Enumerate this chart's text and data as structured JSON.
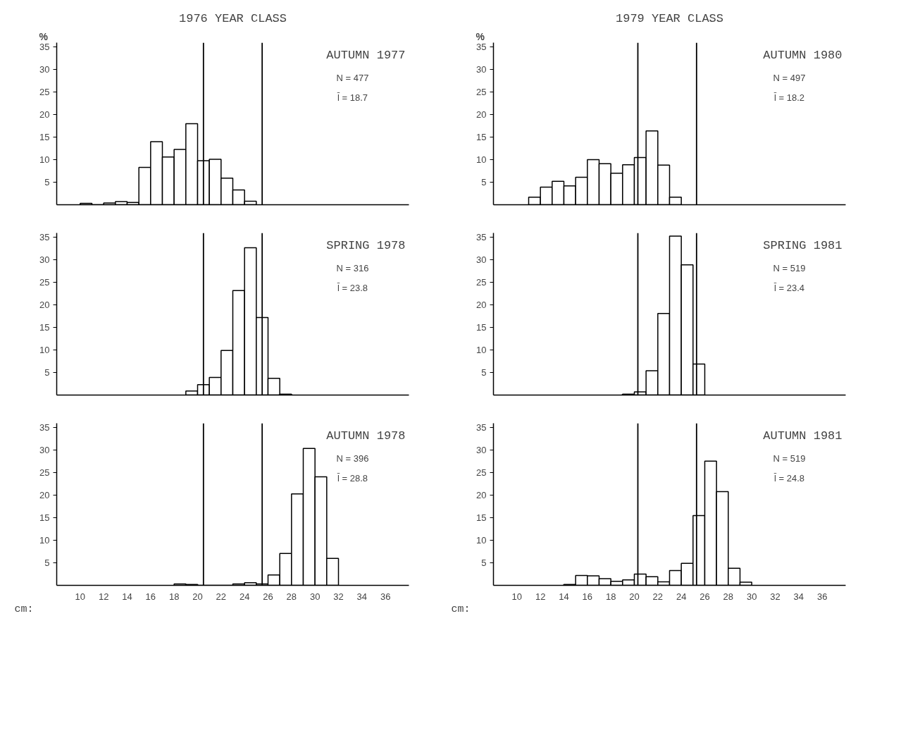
{
  "chart_data": [
    {
      "type": "histogram",
      "title": "1976 YEAR CLASS",
      "subtitle": "AUTUMN 1977",
      "ylabel": "%",
      "annotations": [
        "N = 477",
        "l̄ = 18.7"
      ],
      "color": "#ffffff",
      "bins": [
        10,
        11,
        12,
        13,
        14,
        15,
        16,
        17,
        18,
        19,
        20,
        21,
        22,
        23,
        24,
        25
      ],
      "values": [
        0.3,
        0,
        0.4,
        0.7,
        0.5,
        8.3,
        14,
        10.6,
        12.3,
        18,
        9.8,
        10.1,
        5.9,
        3.3,
        0.8
      ],
      "xlim": [
        8,
        38
      ],
      "ylim": [
        0,
        36
      ],
      "xticks": [
        10,
        12,
        14,
        16,
        18,
        20,
        22,
        24,
        26,
        28,
        30,
        32,
        34,
        36
      ],
      "yticks": [
        5,
        10,
        15,
        20,
        25,
        30,
        35
      ],
      "tick_labels": "y",
      "ref_lines": [
        {
          "axis": "x",
          "value": 20.5,
          "color": "#000000"
        },
        {
          "axis": "x",
          "value": 25.5,
          "color": "#000000"
        }
      ]
    },
    {
      "type": "histogram",
      "title": "1979 YEAR CLASS",
      "subtitle": "AUTUMN 1980",
      "ylabel": "%",
      "annotations": [
        "N = 497",
        "l̄ = 18.2"
      ],
      "color": "#ffffff",
      "bins": [
        10,
        11,
        12,
        13,
        14,
        15,
        16,
        17,
        18,
        19,
        20,
        21,
        22,
        23,
        24
      ],
      "values": [
        null,
        1.7,
        3.9,
        5.2,
        4.2,
        6.1,
        10,
        9.1,
        7,
        8.9,
        10.5,
        16.4,
        8.8,
        1.7
      ],
      "xlim": [
        8,
        38
      ],
      "ylim": [
        0,
        36
      ],
      "xticks": [
        10,
        12,
        14,
        16,
        18,
        20,
        22,
        24,
        26,
        28,
        30,
        32,
        34,
        36
      ],
      "yticks": [
        5,
        10,
        15,
        20,
        25,
        30,
        35
      ],
      "tick_labels": "y",
      "ref_lines": [
        {
          "axis": "x",
          "value": 20.3,
          "color": "#000000"
        },
        {
          "axis": "x",
          "value": 25.3,
          "color": "#000000"
        }
      ]
    },
    {
      "type": "histogram",
      "subtitle": "SPRING 1978",
      "annotations": [
        "N = 316",
        "l̄ = 23.8"
      ],
      "color": "#ffffff",
      "bins": [
        19,
        20,
        21,
        22,
        23,
        24,
        25,
        26,
        27,
        28
      ],
      "values": [
        0.9,
        2.3,
        3.9,
        9.9,
        23.2,
        32.7,
        17.2,
        3.7,
        0.2
      ],
      "xlim": [
        8,
        38
      ],
      "ylim": [
        0,
        36
      ],
      "xticks": [
        10,
        12,
        14,
        16,
        18,
        20,
        22,
        24,
        26,
        28,
        30,
        32,
        34,
        36
      ],
      "yticks": [
        5,
        10,
        15,
        20,
        25,
        30,
        35
      ],
      "tick_labels": "y",
      "ref_lines": [
        {
          "axis": "x",
          "value": 20.5,
          "color": "#000000"
        },
        {
          "axis": "x",
          "value": 25.5,
          "color": "#000000"
        }
      ]
    },
    {
      "type": "histogram",
      "subtitle": "SPRING 1981",
      "annotations": [
        "N = 519",
        "l̄ = 23.4"
      ],
      "color": "#ffffff",
      "bins": [
        19,
        20,
        21,
        22,
        23,
        24,
        25,
        26
      ],
      "values": [
        0.2,
        0.7,
        5.4,
        18.1,
        35.3,
        28.9,
        6.9
      ],
      "xlim": [
        8,
        38
      ],
      "ylim": [
        0,
        36
      ],
      "xticks": [
        10,
        12,
        14,
        16,
        18,
        20,
        22,
        24,
        26,
        28,
        30,
        32,
        34,
        36
      ],
      "yticks": [
        5,
        10,
        15,
        20,
        25,
        30,
        35
      ],
      "tick_labels": "y",
      "ref_lines": [
        {
          "axis": "x",
          "value": 20.3,
          "color": "#000000"
        },
        {
          "axis": "x",
          "value": 25.3,
          "color": "#000000"
        }
      ]
    },
    {
      "type": "histogram",
      "subtitle": "AUTUMN 1978",
      "xlabel": "cm:",
      "annotations": [
        "N = 396",
        "l̄ = 28.8"
      ],
      "color": "#ffffff",
      "bins": [
        18,
        19,
        20,
        21,
        22,
        23,
        24,
        25,
        26,
        27,
        28,
        29,
        30,
        31,
        32
      ],
      "values": [
        0.3,
        0.2,
        0,
        0,
        0,
        0.3,
        0.6,
        0.3,
        2.3,
        7.1,
        20.3,
        30.4,
        24.1,
        6
      ],
      "xlim": [
        8,
        38
      ],
      "ylim": [
        0,
        36
      ],
      "xticks": [
        10,
        12,
        14,
        16,
        18,
        20,
        22,
        24,
        26,
        28,
        30,
        32,
        34,
        36
      ],
      "yticks": [
        5,
        10,
        15,
        20,
        25,
        30,
        35
      ],
      "ref_lines": [
        {
          "axis": "x",
          "value": 20.5,
          "color": "#000000"
        },
        {
          "axis": "x",
          "value": 25.5,
          "color": "#000000"
        }
      ]
    },
    {
      "type": "histogram",
      "subtitle": "AUTUMN 1981",
      "xlabel": "cm:",
      "annotations": [
        "N = 519",
        "l̄ = 24.8"
      ],
      "color": "#ffffff",
      "bins": [
        14,
        15,
        16,
        17,
        18,
        19,
        20,
        21,
        22,
        23,
        24,
        25,
        26,
        27,
        28,
        29,
        30
      ],
      "values": [
        0.2,
        2.2,
        2.1,
        1.5,
        0.9,
        1.2,
        2.5,
        1.9,
        0.8,
        3.3,
        4.9,
        15.5,
        27.6,
        20.8,
        3.8,
        0.7
      ],
      "xlim": [
        8,
        38
      ],
      "ylim": [
        0,
        36
      ],
      "xticks": [
        10,
        12,
        14,
        16,
        18,
        20,
        22,
        24,
        26,
        28,
        30,
        32,
        34,
        36
      ],
      "yticks": [
        5,
        10,
        15,
        20,
        25,
        30,
        35
      ],
      "ref_lines": [
        {
          "axis": "x",
          "value": 20.3,
          "color": "#000000"
        },
        {
          "axis": "x",
          "value": 25.3,
          "color": "#000000"
        }
      ]
    }
  ]
}
